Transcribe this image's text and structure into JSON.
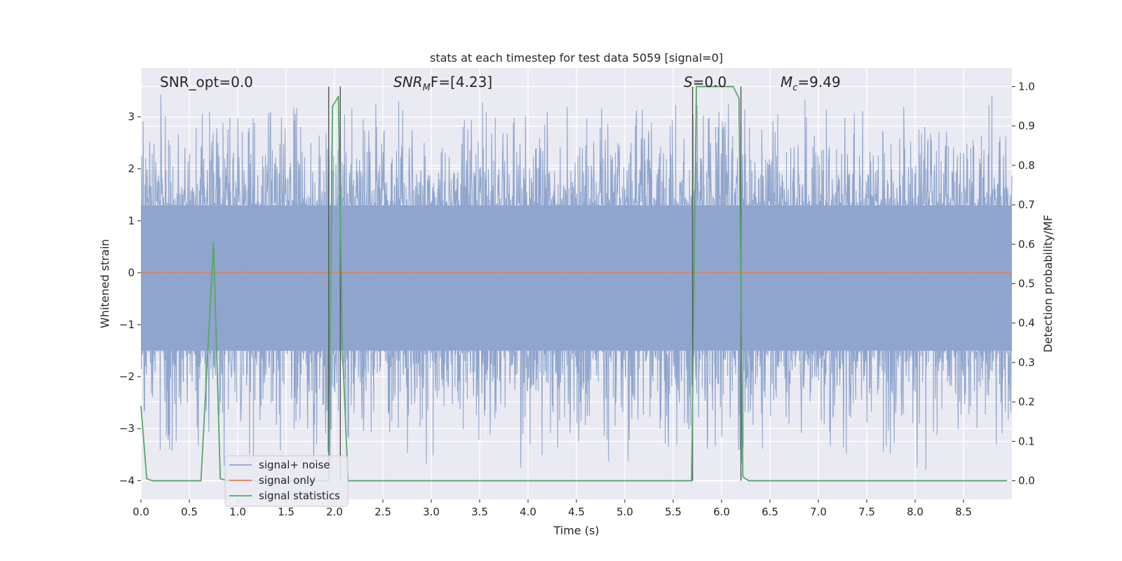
{
  "chart_data": {
    "type": "line",
    "title": "stats at each timestep for test data 5059 [signal=0]",
    "xlabel": "Time (s)",
    "ylabel": "Whitened strain",
    "y2label": "Detection probability/MF",
    "xlim": [
      0.0,
      9.0
    ],
    "ylim": [
      -4.36,
      3.94
    ],
    "y2lim": [
      -0.047,
      1.047
    ],
    "xticks": [
      0.0,
      0.5,
      1.0,
      1.5,
      2.0,
      2.5,
      3.0,
      3.5,
      4.0,
      4.5,
      5.0,
      5.5,
      6.0,
      6.5,
      7.0,
      7.5,
      8.0,
      8.5
    ],
    "xtick_labels": [
      "0.0",
      "0.5",
      "1.0",
      "1.5",
      "2.0",
      "2.5",
      "3.0",
      "3.5",
      "4.0",
      "4.5",
      "5.0",
      "5.5",
      "6.0",
      "6.5",
      "7.0",
      "7.5",
      "8.0",
      "8.5"
    ],
    "yticks": [
      3,
      2,
      1,
      0,
      -1,
      -2,
      -3,
      -4
    ],
    "ytick_labels": [
      "3",
      "2",
      "1",
      "0",
      "−1",
      "−2",
      "−3",
      "−4"
    ],
    "y2ticks": [
      1.0,
      0.9,
      0.8,
      0.7,
      0.6,
      0.5,
      0.4,
      0.3,
      0.2,
      0.1,
      0.0
    ],
    "y2tick_labels": [
      "1.0",
      "0.9",
      "0.8",
      "0.7",
      "0.6",
      "0.5",
      "0.4",
      "0.3",
      "0.2",
      "0.1",
      "0.0"
    ],
    "grid": true,
    "legend_position": "lower-left",
    "annotations": {
      "snr_opt": "SNR_opt=0.0",
      "snr_mf_main": "SNR",
      "snr_mf_sub": "M",
      "snr_mf_rest": "F=[4.23]",
      "s_main": "S",
      "s_rest": "=0.0",
      "mc_main": "M",
      "mc_sub": "c",
      "mc_rest": "=9.49"
    },
    "series": [
      {
        "name": "signal+ noise",
        "color": "#8fa5cd",
        "noise_band": {
          "x_start": 0.0,
          "x_end": 9.0,
          "typical_upper": 1.3,
          "typical_lower": -1.5,
          "max": 3.6,
          "min": -3.95
        }
      },
      {
        "name": "signal only",
        "color": "#dd8452",
        "x": [
          0.0,
          9.0
        ],
        "y": [
          0.0,
          0.0
        ]
      },
      {
        "name": "signal statistics",
        "color": "#55a868",
        "axis": "right",
        "x": [
          0.0,
          0.06,
          0.12,
          0.56,
          0.62,
          0.75,
          0.82,
          0.9,
          1.9,
          1.94,
          1.98,
          2.04,
          2.08,
          2.14,
          2.2,
          5.64,
          5.69,
          5.74,
          5.8,
          6.12,
          6.18,
          6.22,
          6.28,
          8.95
        ],
        "y": [
          0.19,
          0.005,
          0.0,
          0.0,
          0.0,
          0.605,
          0.005,
          0.0,
          0.0,
          0.0,
          0.95,
          0.975,
          0.35,
          0.0,
          0.0,
          0.0,
          0.0,
          1.0,
          1.0,
          1.0,
          0.97,
          0.01,
          0.0,
          0.0
        ]
      }
    ],
    "vertical_lines": {
      "color": "#555555",
      "x": [
        1.94,
        2.06,
        5.7,
        6.2
      ],
      "y2_top": 1.0,
      "y2_bottom": 0.0
    }
  }
}
